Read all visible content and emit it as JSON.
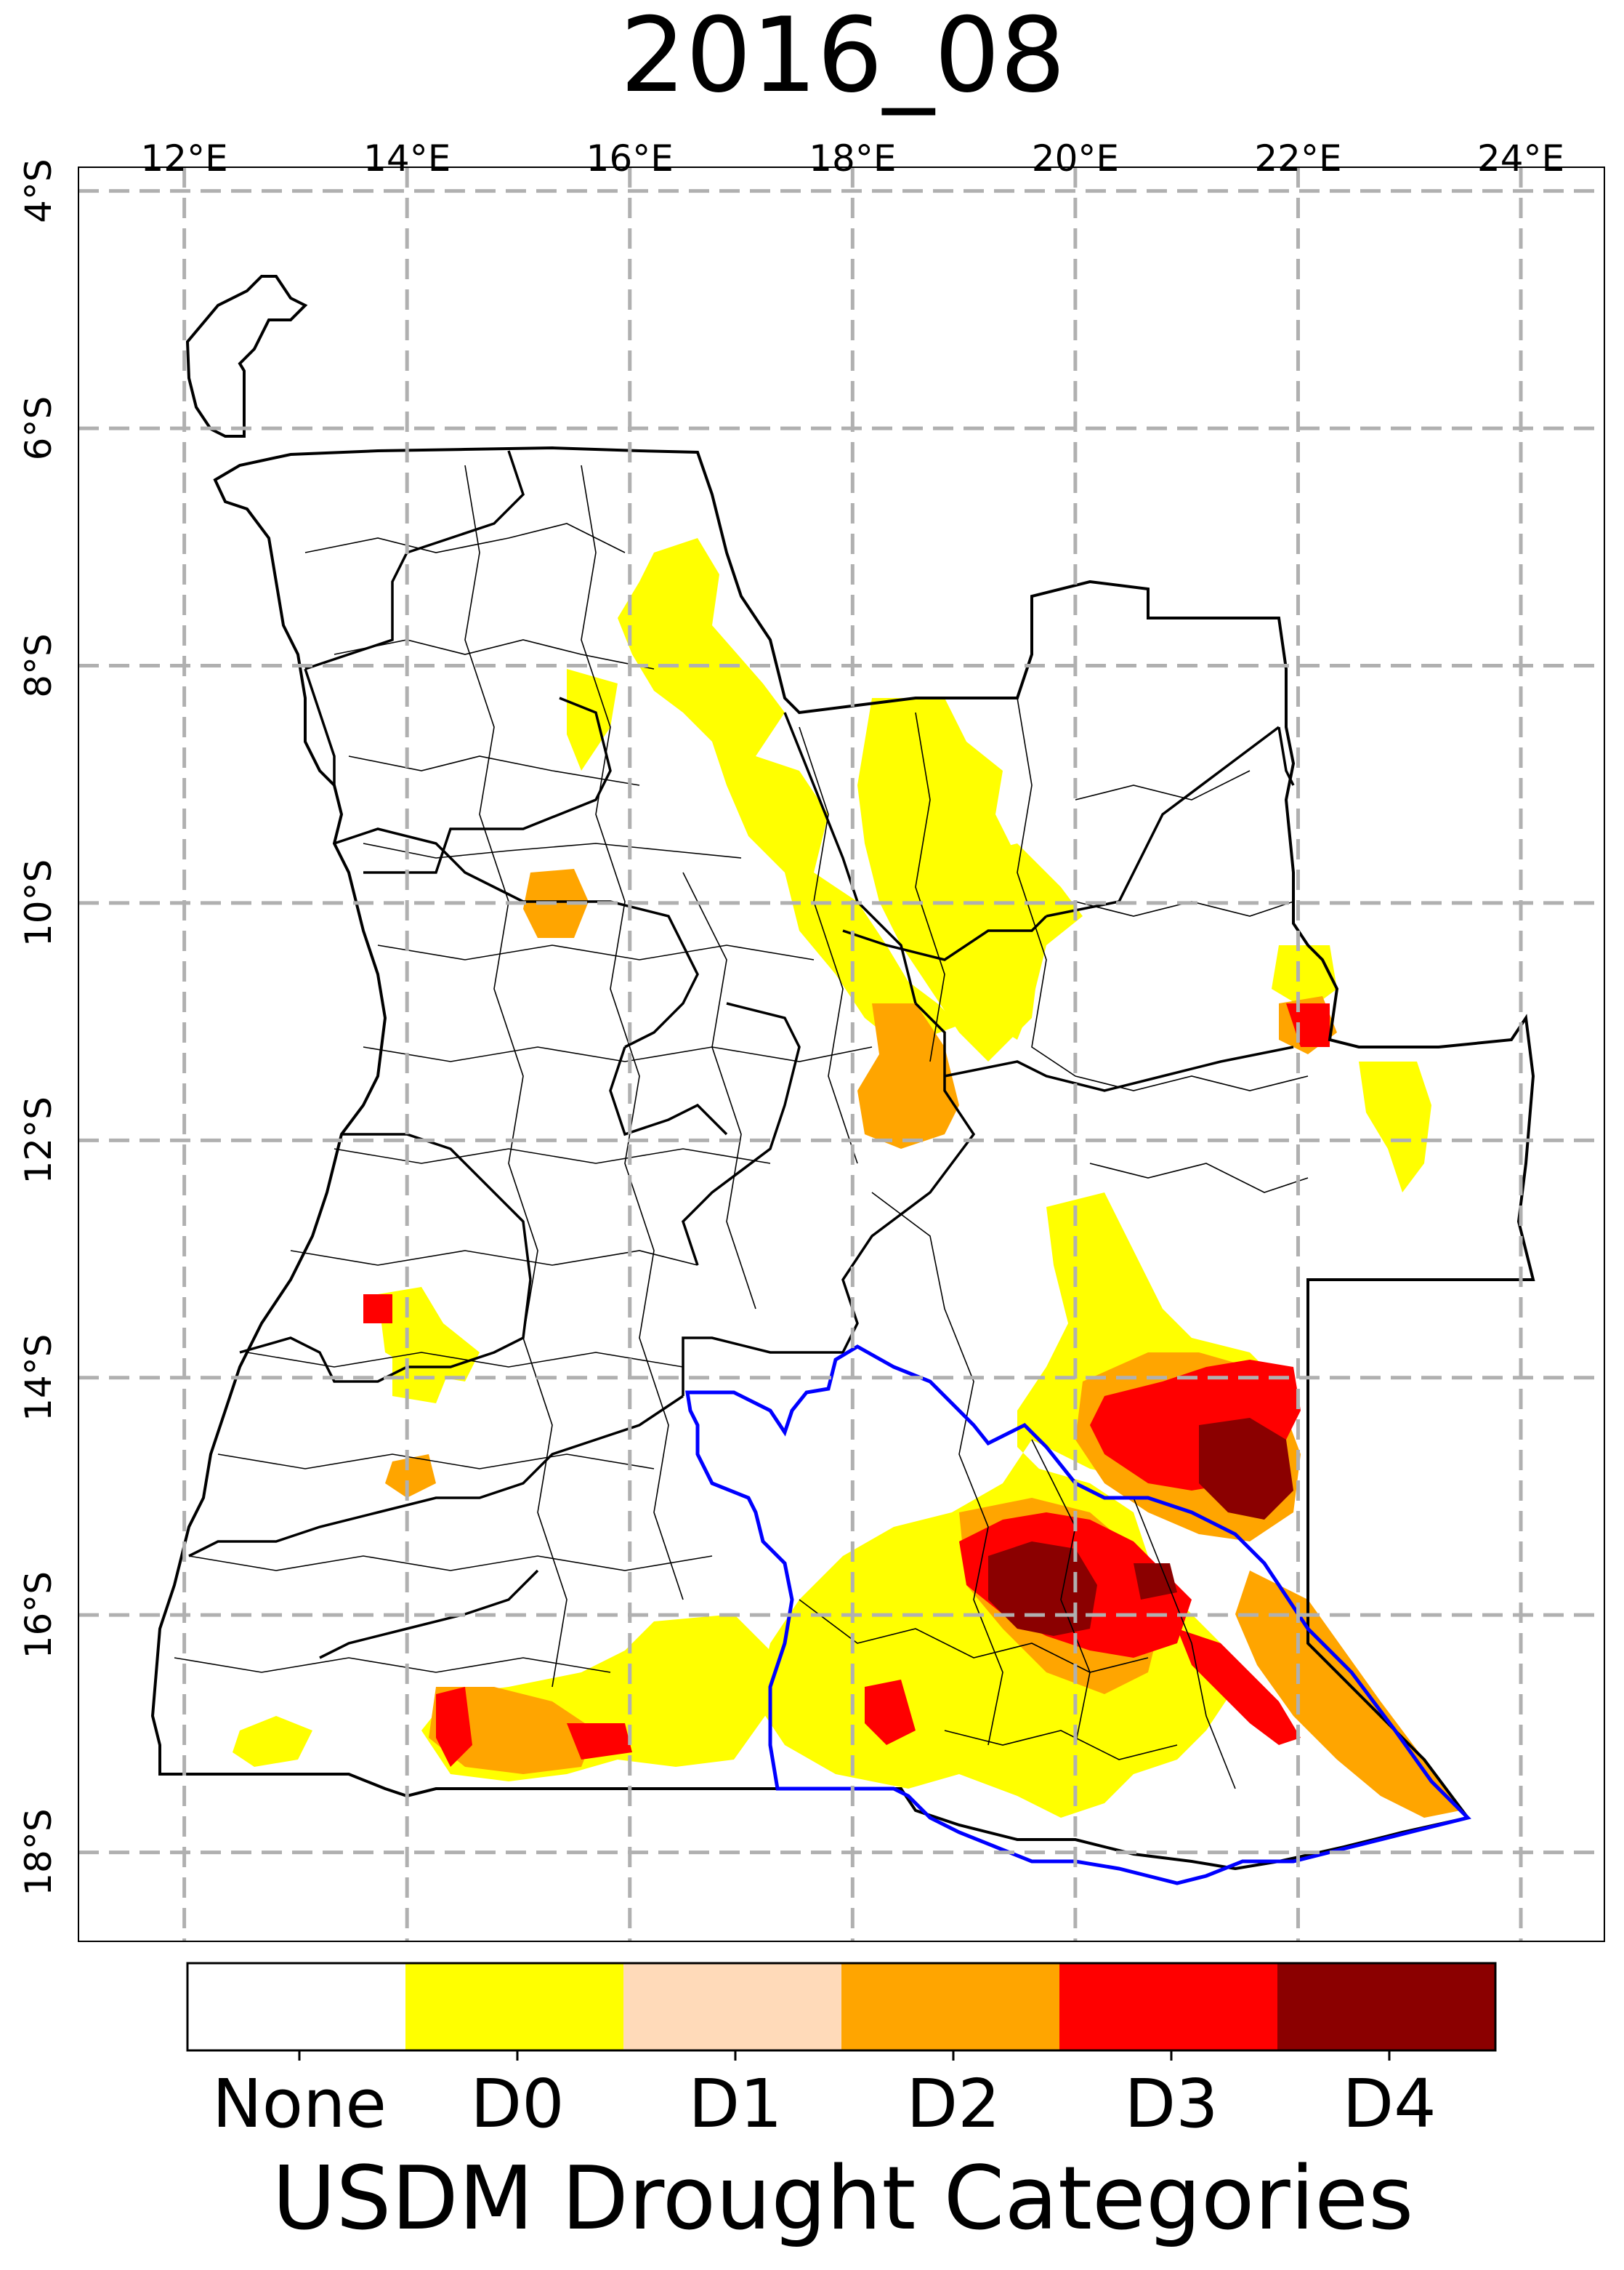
{
  "title": "2016_08",
  "map": {
    "lon_range": [
      11.05,
      24.75
    ],
    "lat_range": [
      -18.75,
      -3.8
    ],
    "lon_ticks": [
      {
        "value": 12,
        "label": "12°E"
      },
      {
        "value": 14,
        "label": "14°E"
      },
      {
        "value": 16,
        "label": "16°E"
      },
      {
        "value": 18,
        "label": "18°E"
      },
      {
        "value": 20,
        "label": "20°E"
      },
      {
        "value": 22,
        "label": "22°E"
      },
      {
        "value": 24,
        "label": "24°E"
      }
    ],
    "lat_ticks": [
      {
        "value": -4,
        "label": "4°S"
      },
      {
        "value": -6,
        "label": "6°S"
      },
      {
        "value": -8,
        "label": "8°S"
      },
      {
        "value": -10,
        "label": "10°S"
      },
      {
        "value": -12,
        "label": "12°S"
      },
      {
        "value": -14,
        "label": "14°S"
      },
      {
        "value": -16,
        "label": "16°S"
      },
      {
        "value": -18,
        "label": "18°S"
      }
    ],
    "grid": true
  },
  "colorbar": {
    "title": "USDM Drought Categories",
    "categories": [
      {
        "label": "None",
        "color": "#ffffff"
      },
      {
        "label": "D0",
        "color": "#ffff00"
      },
      {
        "label": "D1",
        "color": "#fcd37f"
      },
      {
        "label": "D2",
        "color": "#ffaa00"
      },
      {
        "label": "D3",
        "color": "#e60000"
      },
      {
        "label": "D4",
        "color": "#730000"
      }
    ],
    "ticks": [
      "None",
      "D0",
      "D1",
      "D2",
      "D3",
      "D4"
    ]
  },
  "colors": {
    "D0": "#ffff00",
    "D1": "#ffdab9",
    "D2": "#ffa500",
    "D3": "#ff0000",
    "D4": "#8b0000",
    "basin_outline": "#0000ff",
    "borders": "#000000",
    "grid": "#b0b0b0"
  }
}
